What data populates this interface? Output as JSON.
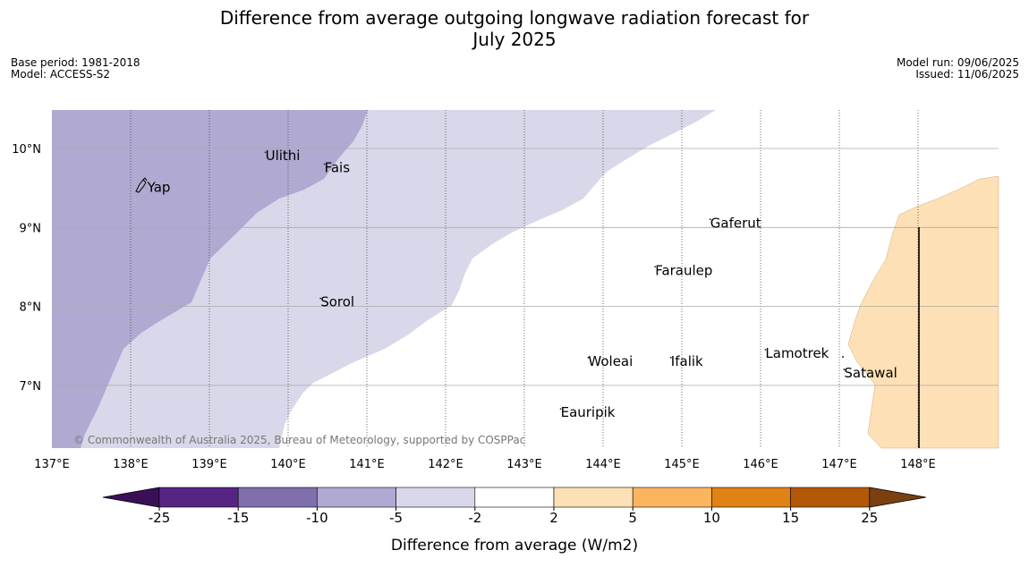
{
  "title": {
    "line1": "Difference from average outgoing longwave radiation forecast for",
    "line2": "July 2025"
  },
  "meta_left": {
    "base_period": "Base period: 1981-2018",
    "model": "Model: ACCESS-S2"
  },
  "meta_right": {
    "model_run": "Model run: 09/06/2025",
    "issued": "Issued: 11/06/2025"
  },
  "map": {
    "lon_range": [
      137,
      149
    ],
    "lat_range": [
      6.2,
      10.5
    ],
    "lon_ticks": [
      {
        "value": 137,
        "label": "137°E"
      },
      {
        "value": 138,
        "label": "138°E"
      },
      {
        "value": 139,
        "label": "139°E"
      },
      {
        "value": 140,
        "label": "140°E"
      },
      {
        "value": 141,
        "label": "141°E"
      },
      {
        "value": 142,
        "label": "142°E"
      },
      {
        "value": 143,
        "label": "143°E"
      },
      {
        "value": 144,
        "label": "144°E"
      },
      {
        "value": 145,
        "label": "145°E"
      },
      {
        "value": 146,
        "label": "146°E"
      },
      {
        "value": 147,
        "label": "147°E"
      },
      {
        "value": 148,
        "label": "148°E"
      }
    ],
    "lat_ticks": [
      {
        "value": 10,
        "label": "10°N"
      },
      {
        "value": 9,
        "label": "9°N"
      },
      {
        "value": 8,
        "label": "8°N"
      },
      {
        "value": 7,
        "label": "7°N"
      }
    ],
    "places": [
      {
        "name": "Ulithi",
        "lon": 139.7,
        "lat": 9.85
      },
      {
        "name": "Fais",
        "lon": 140.45,
        "lat": 9.7
      },
      {
        "name": "Yap",
        "lon": 138.2,
        "lat": 9.45
      },
      {
        "name": "Gaferut",
        "lon": 145.35,
        "lat": 9.0
      },
      {
        "name": "Faraulep",
        "lon": 144.65,
        "lat": 8.4
      },
      {
        "name": "Sorol",
        "lon": 140.4,
        "lat": 8.0
      },
      {
        "name": "Lamotrek",
        "lon": 146.05,
        "lat": 7.35
      },
      {
        "name": "Woleai",
        "lon": 143.8,
        "lat": 7.25
      },
      {
        "name": "Ifalik",
        "lon": 144.85,
        "lat": 7.25
      },
      {
        "name": "Satawal",
        "lon": 147.05,
        "lat": 7.1
      },
      {
        "name": "Eauripik",
        "lon": 143.45,
        "lat": 6.6
      }
    ],
    "regions": [
      {
        "category": "-10 to -5",
        "color": "#b0a9d1"
      },
      {
        "category": "-5 to -2",
        "color": "#d8d8ea"
      },
      {
        "category": "2 to 5",
        "color": "#fde0b5"
      }
    ],
    "copyright": "© Commonwealth of Australia 2025, Bureau of Meteorology, supported by COSPPac"
  },
  "colorbar": {
    "label": "Difference from average (W/m2)",
    "ticks": [
      "-25",
      "-15",
      "-10",
      "-5",
      "-2",
      "2",
      "5",
      "10",
      "15",
      "25"
    ],
    "low_extend_color": "#3b0f58",
    "high_extend_color": "#7a4010",
    "colors": [
      "#562482",
      "#7f70ad",
      "#b0a9d1",
      "#d8d8ea",
      "#ffffff",
      "#fde0b5",
      "#fbb55e",
      "#e08214",
      "#b35806"
    ]
  }
}
